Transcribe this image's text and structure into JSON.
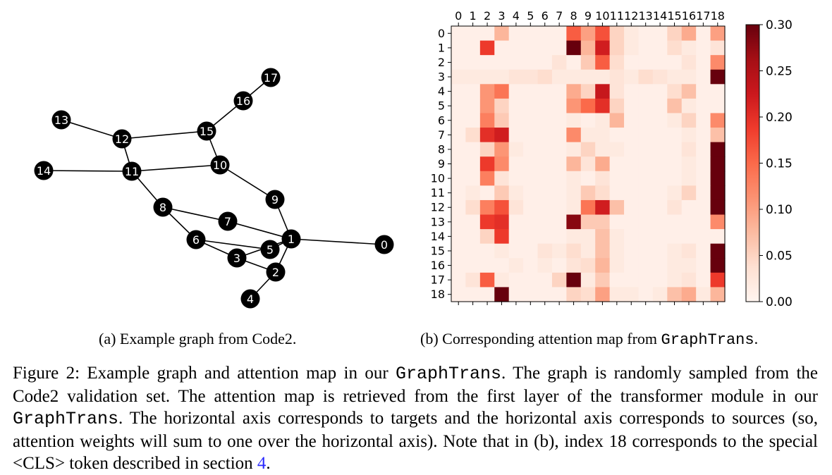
{
  "graph": {
    "nodes": [
      {
        "id": "0",
        "label": "0"
      },
      {
        "id": "1",
        "label": "1"
      },
      {
        "id": "2",
        "label": "2"
      },
      {
        "id": "3",
        "label": "3"
      },
      {
        "id": "4",
        "label": "4"
      },
      {
        "id": "5",
        "label": "5"
      },
      {
        "id": "6",
        "label": "6"
      },
      {
        "id": "7",
        "label": "7"
      },
      {
        "id": "8",
        "label": "8"
      },
      {
        "id": "9",
        "label": "9"
      },
      {
        "id": "10",
        "label": "10"
      },
      {
        "id": "11",
        "label": "11"
      },
      {
        "id": "12",
        "label": "12"
      },
      {
        "id": "13",
        "label": "13"
      },
      {
        "id": "14",
        "label": "14"
      },
      {
        "id": "15",
        "label": "15"
      },
      {
        "id": "16",
        "label": "16"
      },
      {
        "id": "17",
        "label": "17"
      }
    ],
    "edges": [
      [
        "1",
        "0"
      ],
      [
        "1",
        "5"
      ],
      [
        "1",
        "7"
      ],
      [
        "1",
        "9"
      ],
      [
        "1",
        "3"
      ],
      [
        "1",
        "2"
      ],
      [
        "2",
        "4"
      ],
      [
        "2",
        "3"
      ],
      [
        "3",
        "6"
      ],
      [
        "6",
        "5"
      ],
      [
        "6",
        "8"
      ],
      [
        "8",
        "7"
      ],
      [
        "8",
        "11"
      ],
      [
        "9",
        "10"
      ],
      [
        "10",
        "11"
      ],
      [
        "10",
        "15"
      ],
      [
        "11",
        "12"
      ],
      [
        "11",
        "14"
      ],
      [
        "12",
        "13"
      ],
      [
        "12",
        "15"
      ],
      [
        "15",
        "16"
      ],
      [
        "16",
        "17"
      ]
    ]
  },
  "chart_data": {
    "type": "heatmap",
    "x_labels": [
      "0",
      "1",
      "2",
      "3",
      "4",
      "5",
      "6",
      "7",
      "8",
      "9",
      "10",
      "11",
      "12",
      "13",
      "14",
      "15",
      "16",
      "17",
      "18"
    ],
    "y_labels": [
      "0",
      "1",
      "2",
      "3",
      "4",
      "5",
      "6",
      "7",
      "8",
      "9",
      "10",
      "11",
      "12",
      "13",
      "14",
      "15",
      "16",
      "17",
      "18"
    ],
    "colorbar": {
      "min": 0.0,
      "max": 0.3,
      "ticks": [
        "0.00",
        "0.05",
        "0.10",
        "0.15",
        "0.20",
        "0.25",
        "0.30"
      ],
      "colormap": "Reds"
    },
    "values": [
      [
        0.01,
        0.01,
        0.01,
        0.08,
        0.01,
        0.01,
        0.01,
        0.01,
        0.16,
        0.1,
        0.17,
        0.05,
        0.02,
        0.01,
        0.01,
        0.05,
        0.09,
        0.01,
        0.1
      ],
      [
        0.01,
        0.01,
        0.19,
        0.01,
        0.01,
        0.01,
        0.01,
        0.01,
        0.3,
        0.08,
        0.22,
        0.05,
        0.02,
        0.01,
        0.01,
        0.04,
        0.02,
        0.01,
        0.03
      ],
      [
        0.01,
        0.01,
        0.01,
        0.01,
        0.01,
        0.01,
        0.01,
        0.03,
        0.01,
        0.06,
        0.16,
        0.04,
        0.01,
        0.01,
        0.01,
        0.01,
        0.03,
        0.01,
        0.12
      ],
      [
        0.02,
        0.02,
        0.02,
        0.02,
        0.03,
        0.03,
        0.04,
        0.02,
        0.02,
        0.02,
        0.02,
        0.03,
        0.02,
        0.04,
        0.03,
        0.02,
        0.02,
        0.01,
        0.3
      ],
      [
        0.01,
        0.01,
        0.11,
        0.14,
        0.01,
        0.01,
        0.01,
        0.01,
        0.09,
        0.05,
        0.23,
        0.03,
        0.01,
        0.01,
        0.01,
        0.04,
        0.07,
        0.01,
        0.01
      ],
      [
        0.01,
        0.01,
        0.11,
        0.05,
        0.01,
        0.01,
        0.01,
        0.01,
        0.11,
        0.15,
        0.2,
        0.05,
        0.01,
        0.01,
        0.01,
        0.07,
        0.02,
        0.01,
        0.01
      ],
      [
        0.01,
        0.01,
        0.13,
        0.06,
        0.01,
        0.01,
        0.01,
        0.01,
        0.02,
        0.01,
        0.02,
        0.08,
        0.01,
        0.01,
        0.01,
        0.02,
        0.05,
        0.01,
        0.12
      ],
      [
        0.01,
        0.04,
        0.2,
        0.22,
        0.01,
        0.01,
        0.01,
        0.01,
        0.12,
        0.02,
        0.02,
        0.01,
        0.01,
        0.01,
        0.01,
        0.01,
        0.02,
        0.01,
        0.07
      ],
      [
        0.01,
        0.01,
        0.05,
        0.11,
        0.02,
        0.01,
        0.01,
        0.01,
        0.02,
        0.05,
        0.02,
        0.02,
        0.01,
        0.01,
        0.01,
        0.01,
        0.03,
        0.01,
        0.3
      ],
      [
        0.01,
        0.01,
        0.19,
        0.12,
        0.01,
        0.01,
        0.01,
        0.01,
        0.08,
        0.03,
        0.09,
        0.01,
        0.01,
        0.01,
        0.01,
        0.01,
        0.02,
        0.01,
        0.3
      ],
      [
        0.01,
        0.01,
        0.13,
        0.03,
        0.01,
        0.01,
        0.01,
        0.01,
        0.02,
        0.01,
        0.03,
        0.01,
        0.01,
        0.01,
        0.01,
        0.01,
        0.02,
        0.01,
        0.3
      ],
      [
        0.01,
        0.02,
        0.01,
        0.06,
        0.02,
        0.01,
        0.01,
        0.01,
        0.02,
        0.06,
        0.04,
        0.01,
        0.01,
        0.01,
        0.01,
        0.02,
        0.05,
        0.01,
        0.3
      ],
      [
        0.01,
        0.04,
        0.13,
        0.17,
        0.03,
        0.01,
        0.01,
        0.01,
        0.02,
        0.14,
        0.22,
        0.07,
        0.01,
        0.01,
        0.01,
        0.03,
        0.01,
        0.01,
        0.3
      ],
      [
        0.01,
        0.01,
        0.19,
        0.2,
        0.01,
        0.01,
        0.01,
        0.01,
        0.28,
        0.06,
        0.06,
        0.01,
        0.01,
        0.01,
        0.01,
        0.01,
        0.01,
        0.01,
        0.12
      ],
      [
        0.01,
        0.01,
        0.05,
        0.19,
        0.01,
        0.01,
        0.01,
        0.01,
        0.02,
        0.02,
        0.07,
        0.02,
        0.01,
        0.01,
        0.01,
        0.01,
        0.01,
        0.01,
        0.01
      ],
      [
        0.01,
        0.01,
        0.01,
        0.02,
        0.01,
        0.01,
        0.03,
        0.02,
        0.04,
        0.02,
        0.07,
        0.02,
        0.01,
        0.01,
        0.01,
        0.02,
        0.03,
        0.01,
        0.3
      ],
      [
        0.01,
        0.01,
        0.01,
        0.01,
        0.02,
        0.01,
        0.02,
        0.01,
        0.03,
        0.04,
        0.08,
        0.02,
        0.01,
        0.01,
        0.01,
        0.02,
        0.02,
        0.01,
        0.3
      ],
      [
        0.01,
        0.03,
        0.16,
        0.02,
        0.01,
        0.01,
        0.01,
        0.05,
        0.3,
        0.02,
        0.06,
        0.01,
        0.01,
        0.01,
        0.01,
        0.02,
        0.03,
        0.01,
        0.19
      ],
      [
        0.01,
        0.01,
        0.01,
        0.3,
        0.01,
        0.01,
        0.01,
        0.01,
        0.05,
        0.04,
        0.1,
        0.02,
        0.02,
        0.01,
        0.02,
        0.07,
        0.09,
        0.02,
        0.08
      ]
    ]
  },
  "captions": {
    "a": "(a) Example graph from Code2.",
    "b_prefix": "(b) Corresponding attention map from ",
    "b_mono": "GraphTrans",
    "b_suffix": "."
  },
  "figure_caption": {
    "part1": "Figure 2: Example graph and attention map in our ",
    "mono1": "GraphTrans",
    "part2": ". The graph is randomly sampled from the Code2 validation set. The attention map is retrieved from the first layer of the transformer module in our ",
    "mono2": "GraphTrans",
    "part3": ". The horizontal axis corresponds to targets and the horizontal axis corresponds to sources (so, attention weights will sum to one over the horizontal axis). Note that in (b), index 18 corresponds to the special <CLS> token described in section ",
    "ref": "4",
    "part4": "."
  }
}
